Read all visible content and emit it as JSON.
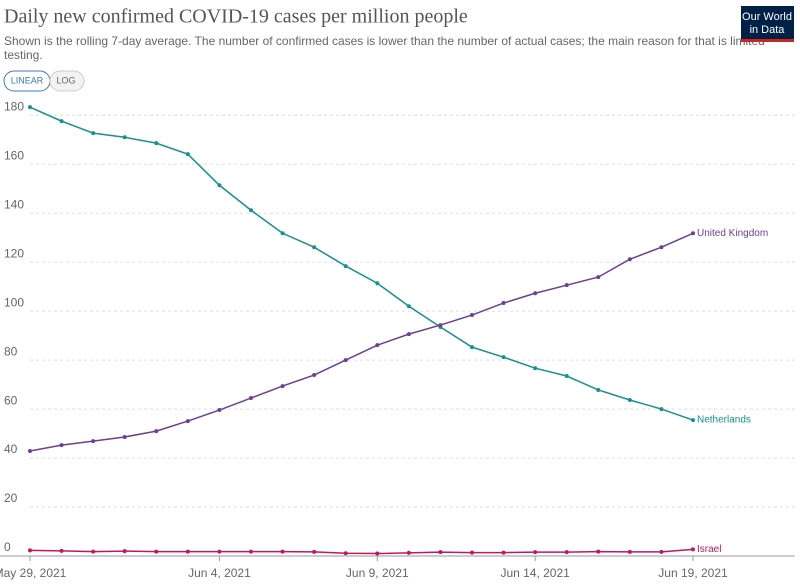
{
  "chart_data": {
    "type": "line",
    "title": "Daily new confirmed COVID-19 cases per million people",
    "subtitle": [
      "Shown is the rolling 7-day average. The number of confirmed cases is lower than the number of actual cases; the main reason for that is limited",
      "testing."
    ],
    "logo": [
      "Our World",
      "in Data"
    ],
    "scale_buttons": [
      "LINEAR",
      "LOG"
    ],
    "log_scale": false,
    "grid": true,
    "x": [
      "2021-05-29",
      "2021-05-30",
      "2021-05-31",
      "2021-06-01",
      "2021-06-02",
      "2021-06-03",
      "2021-06-04",
      "2021-06-05",
      "2021-06-06",
      "2021-06-07",
      "2021-06-08",
      "2021-06-09",
      "2021-06-10",
      "2021-06-11",
      "2021-06-12",
      "2021-06-13",
      "2021-06-14",
      "2021-06-15",
      "2021-06-16",
      "2021-06-17",
      "2021-06-18",
      "2021-06-19"
    ],
    "xticks": [
      {
        "value": "2021-05-29",
        "label": "May 29, 2021"
      },
      {
        "value": "2021-06-04",
        "label": "Jun 4, 2021"
      },
      {
        "value": "2021-06-09",
        "label": "Jun 9, 2021"
      },
      {
        "value": "2021-06-14",
        "label": "Jun 14, 2021"
      },
      {
        "value": "2021-06-19",
        "label": "Jun 19, 2021"
      }
    ],
    "ylim": [
      0,
      185
    ],
    "yticks": [
      0,
      20,
      40,
      60,
      80,
      100,
      120,
      140,
      160,
      180
    ],
    "series": [
      {
        "name": "Netherlands",
        "color": "#16918f",
        "values": [
          183.3,
          177.6,
          172.7,
          171,
          168.6,
          164.1,
          151.4,
          141.2,
          131.8,
          126.1,
          118.4,
          111.4,
          102,
          93.5,
          85.3,
          81.2,
          76.7,
          73.5,
          67.8,
          63.7,
          60,
          55.5
        ]
      },
      {
        "name": "United Kingdom",
        "color": "#6d3e91",
        "values": [
          42.9,
          45.3,
          46.9,
          48.6,
          51,
          55.1,
          59.6,
          64.5,
          69.4,
          73.9,
          80,
          86.1,
          90.6,
          94.3,
          98.4,
          103.3,
          107.3,
          110.6,
          113.9,
          121.2,
          126.1,
          131.8
        ]
      },
      {
        "name": "Israel",
        "color": "#c2185b",
        "values": [
          2.3,
          2.1,
          1.8,
          2,
          1.8,
          1.8,
          1.8,
          1.8,
          1.8,
          1.7,
          1.1,
          1,
          1.3,
          1.6,
          1.4,
          1.4,
          1.6,
          1.6,
          1.8,
          1.7,
          1.7,
          2.7
        ]
      }
    ]
  }
}
